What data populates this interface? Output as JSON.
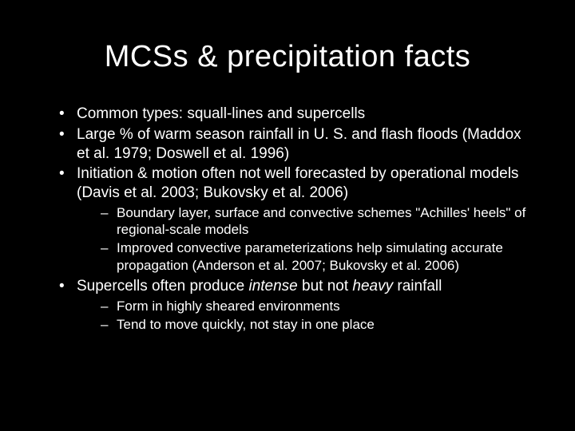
{
  "background_color": "#000000",
  "text_color": "#ffffff",
  "font_family": "Arial",
  "title": {
    "text": "MCSs & precipitation facts",
    "fontsize": 38,
    "align": "center"
  },
  "bullets": [
    {
      "text": "Common types: squall-lines and supercells",
      "fontsize": 19
    },
    {
      "text": "Large % of warm season rainfall in U. S. and flash floods (Maddox et al. 1979; Doswell et al. 1996)",
      "fontsize": 19
    },
    {
      "text": "Initiation & motion often not well forecasted by operational models (Davis et al. 2003; Bukovsky et al. 2006)",
      "fontsize": 19,
      "sub": [
        {
          "text": "Boundary layer, surface and convective schemes \"Achilles' heels\" of regional-scale models",
          "fontsize": 17
        },
        {
          "text": "Improved convective parameterizations help simulating accurate propagation (Anderson et al. 2007; Bukovsky et al. 2006)",
          "fontsize": 17
        }
      ]
    },
    {
      "segments": [
        {
          "text": "Supercells often produce ",
          "italic": false
        },
        {
          "text": "intense",
          "italic": true
        },
        {
          "text": " but not ",
          "italic": false
        },
        {
          "text": "heavy",
          "italic": true
        },
        {
          "text": " rainfall",
          "italic": false
        }
      ],
      "fontsize": 19,
      "sub": [
        {
          "text": "Form in highly sheared environments",
          "fontsize": 17
        },
        {
          "text": "Tend to move quickly, not stay in one place",
          "fontsize": 17
        }
      ]
    }
  ]
}
